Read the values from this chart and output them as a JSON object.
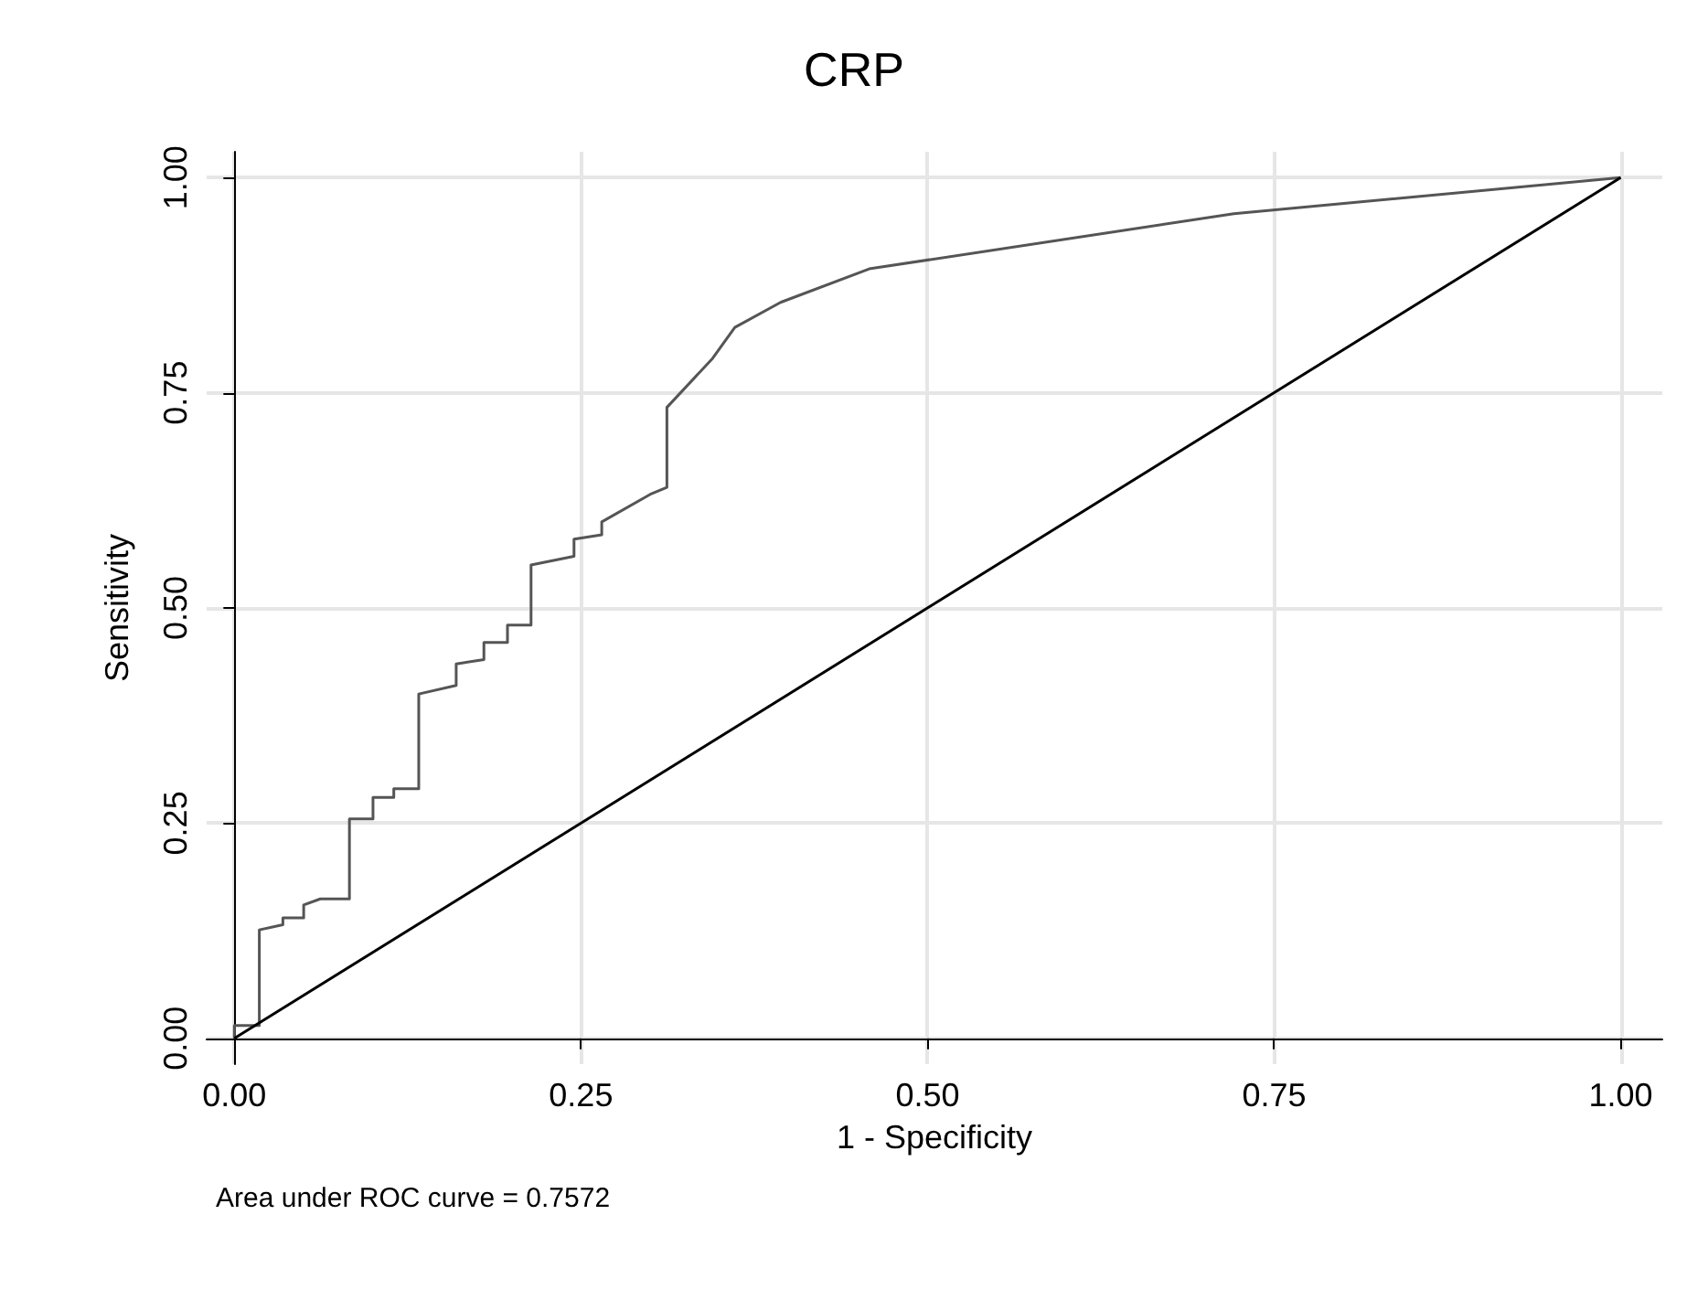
{
  "chart_data": {
    "type": "line",
    "title": "CRP",
    "xlabel": "1 - Specificity",
    "ylabel": "Sensitivity",
    "annotations": [
      "Area under ROC curve = 0.7572"
    ],
    "series": [
      {
        "color": "#555555",
        "x": [
          0,
          0,
          0.018,
          0.018,
          0.035,
          0.035,
          0.05,
          0.05,
          0.062,
          0.062,
          0.083,
          0.083,
          0.1,
          0.1,
          0.115,
          0.115,
          0.133,
          0.133,
          0.16,
          0.16,
          0.18,
          0.18,
          0.197,
          0.197,
          0.214,
          0.214,
          0.245,
          0.245,
          0.265,
          0.265,
          0.3,
          0.312,
          0.312,
          0.345,
          0.361,
          0.394,
          0.458,
          0.721,
          1
        ],
        "values": [
          0,
          0.015,
          0.015,
          0.126,
          0.132,
          0.14,
          0.14,
          0.155,
          0.162,
          0.162,
          0.162,
          0.255,
          0.255,
          0.28,
          0.28,
          0.29,
          0.29,
          0.4,
          0.41,
          0.435,
          0.44,
          0.46,
          0.46,
          0.48,
          0.48,
          0.55,
          0.56,
          0.58,
          0.585,
          0.6,
          0.632,
          0.64,
          0.733,
          0.79,
          0.826,
          0.855,
          0.894,
          0.958,
          1
        ]
      },
      {
        "color": "#000000",
        "x": [
          0,
          1
        ],
        "values": [
          0,
          1
        ]
      }
    ],
    "xlim": [
      -0.02,
      1.03
    ],
    "ylim": [
      -0.03,
      1.03
    ],
    "xticks": [
      {
        "value": 0,
        "label": "0.00"
      },
      {
        "value": 0.25,
        "label": "0.25"
      },
      {
        "value": 0.5,
        "label": "0.50"
      },
      {
        "value": 0.75,
        "label": "0.75"
      },
      {
        "value": 1,
        "label": "1.00"
      }
    ],
    "yticks": [
      {
        "value": 0,
        "label": "0.00"
      },
      {
        "value": 0.25,
        "label": "0.25"
      },
      {
        "value": 0.5,
        "label": "0.50"
      },
      {
        "value": 0.75,
        "label": "0.75"
      },
      {
        "value": 1,
        "label": "1.00"
      }
    ],
    "grid": true,
    "marker": "none",
    "line_style": "solid"
  }
}
